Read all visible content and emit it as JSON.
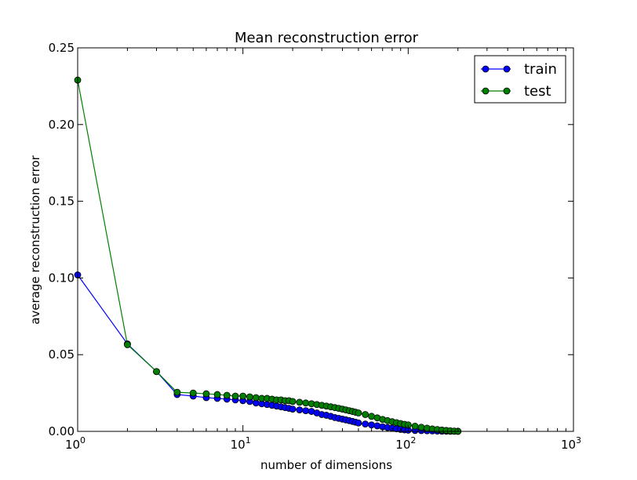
{
  "chart_data": {
    "type": "line",
    "title": "Mean reconstruction error",
    "xlabel": "number of dimensions",
    "ylabel": "average reconstruction error",
    "xscale": "log",
    "xlim": [
      1,
      1000
    ],
    "ylim": [
      0,
      0.25
    ],
    "yticks": [
      "0.00",
      "0.05",
      "0.10",
      "0.15",
      "0.20",
      "0.25"
    ],
    "xticks": [
      {
        "base": "10",
        "exp": "0"
      },
      {
        "base": "10",
        "exp": "1"
      },
      {
        "base": "10",
        "exp": "2"
      },
      {
        "base": "10",
        "exp": "3"
      }
    ],
    "grid": false,
    "legend_position": "top-right",
    "series": [
      {
        "name": "train",
        "color": "#0000ff",
        "marker": "circle",
        "x": [
          1,
          2,
          3,
          4,
          5,
          6,
          7,
          8,
          9,
          10,
          11,
          12,
          13,
          14,
          15,
          16,
          17,
          18,
          19,
          20,
          22,
          24,
          26,
          28,
          30,
          32,
          34,
          36,
          38,
          40,
          42,
          44,
          46,
          48,
          50,
          55,
          60,
          65,
          70,
          75,
          80,
          85,
          90,
          95,
          100,
          110,
          120,
          130,
          140,
          150,
          160,
          170,
          180,
          190,
          200
        ],
        "values": [
          0.102,
          0.057,
          0.039,
          0.024,
          0.023,
          0.022,
          0.0215,
          0.021,
          0.0205,
          0.02,
          0.0195,
          0.0185,
          0.018,
          0.0175,
          0.017,
          0.0165,
          0.016,
          0.0155,
          0.015,
          0.0145,
          0.014,
          0.0135,
          0.013,
          0.012,
          0.011,
          0.0105,
          0.0098,
          0.009,
          0.0085,
          0.008,
          0.0075,
          0.007,
          0.0065,
          0.006,
          0.0055,
          0.0048,
          0.0042,
          0.0036,
          0.003,
          0.0025,
          0.0021,
          0.0017,
          0.0013,
          0.001,
          0.0008,
          0.0006,
          0.0005,
          0.0004,
          0.0003,
          0.0002,
          0.00015,
          0.0001,
          8e-05,
          5e-05,
          2e-05
        ]
      },
      {
        "name": "test",
        "color": "#008000",
        "marker": "circle",
        "x": [
          1,
          2,
          3,
          4,
          5,
          6,
          7,
          8,
          9,
          10,
          11,
          12,
          13,
          14,
          15,
          16,
          17,
          18,
          19,
          20,
          22,
          24,
          26,
          28,
          30,
          32,
          34,
          36,
          38,
          40,
          42,
          44,
          46,
          48,
          50,
          55,
          60,
          65,
          70,
          75,
          80,
          85,
          90,
          95,
          100,
          110,
          120,
          130,
          140,
          150,
          160,
          170,
          180,
          190,
          200
        ],
        "values": [
          0.229,
          0.0565,
          0.039,
          0.0255,
          0.025,
          0.0245,
          0.024,
          0.0235,
          0.023,
          0.023,
          0.0225,
          0.022,
          0.0215,
          0.0215,
          0.021,
          0.0205,
          0.0205,
          0.02,
          0.02,
          0.0195,
          0.019,
          0.0185,
          0.018,
          0.0175,
          0.017,
          0.0165,
          0.016,
          0.0155,
          0.015,
          0.0145,
          0.014,
          0.0135,
          0.013,
          0.0125,
          0.012,
          0.011,
          0.0098,
          0.0088,
          0.0078,
          0.007,
          0.0063,
          0.0057,
          0.0051,
          0.0046,
          0.0042,
          0.0034,
          0.0027,
          0.0021,
          0.0016,
          0.0012,
          0.0009,
          0.0006,
          0.0004,
          0.0002,
          0.0001
        ]
      }
    ]
  }
}
